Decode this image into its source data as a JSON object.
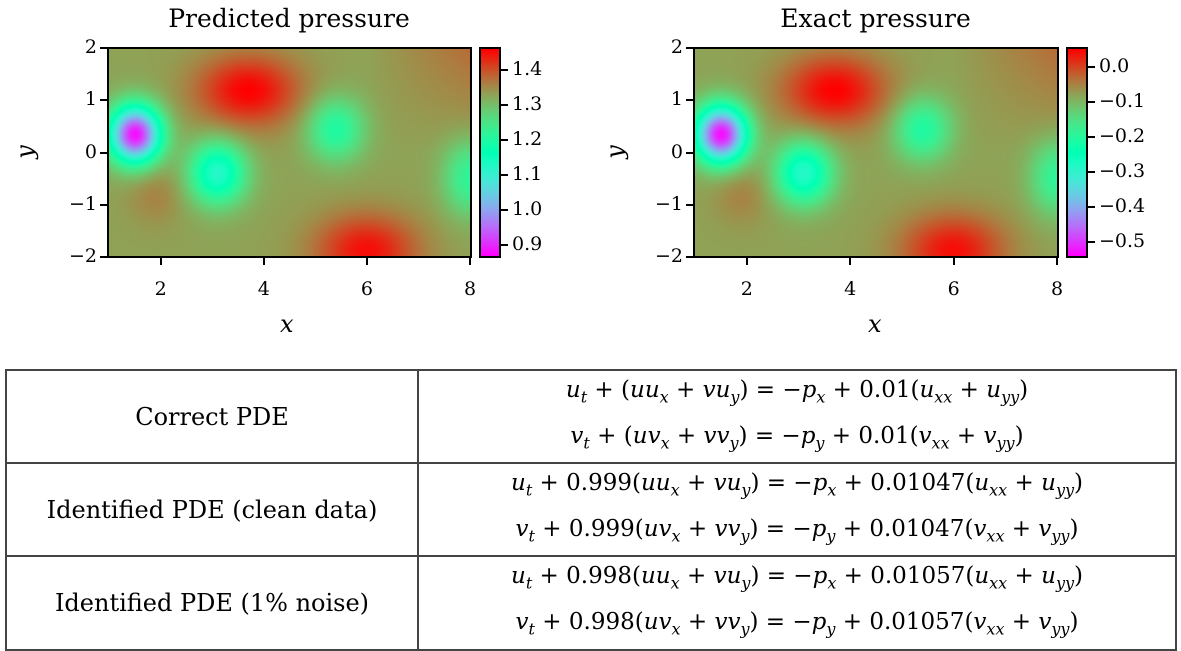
{
  "chart_data": [
    {
      "type": "heatmap",
      "title": "Predicted pressure",
      "xlabel": "x",
      "ylabel": "y",
      "xlim": [
        1,
        8
      ],
      "ylim": [
        -2,
        2
      ],
      "xticks": [
        "2",
        "4",
        "6",
        "8"
      ],
      "xtick_values": [
        2,
        4,
        6,
        8
      ],
      "yticks": [
        "2",
        "1",
        "0",
        "−1",
        "−2"
      ],
      "ytick_values": [
        2,
        1,
        0,
        -1,
        -2
      ],
      "colormap": "rainbow",
      "colorbar": {
        "range": [
          0.87,
          1.46
        ],
        "ticks": [
          "1.4",
          "1.3",
          "1.2",
          "1.1",
          "1.0",
          "0.9"
        ],
        "tick_values": [
          1.4,
          1.3,
          1.2,
          1.1,
          1.0,
          0.9
        ]
      },
      "features": [
        {
          "x": 1.5,
          "y": 0.35,
          "value": 0.88,
          "kind": "minimum"
        },
        {
          "x": 3.1,
          "y": -0.4,
          "value": 1.12,
          "kind": "local-minimum"
        },
        {
          "x": 5.4,
          "y": 0.45,
          "value": 1.2,
          "kind": "local-minimum"
        },
        {
          "x": 8.0,
          "y": -0.5,
          "value": 1.22,
          "kind": "local-minimum"
        },
        {
          "x": 3.7,
          "y": 1.2,
          "value": 1.46,
          "kind": "maximum"
        },
        {
          "x": 6.0,
          "y": -1.9,
          "value": 1.45,
          "kind": "maximum"
        },
        {
          "x": 1.9,
          "y": -0.8,
          "value": 1.36,
          "kind": "local-maximum"
        }
      ]
    },
    {
      "type": "heatmap",
      "title": "Exact pressure",
      "xlabel": "x",
      "ylabel": "y",
      "xlim": [
        1,
        8
      ],
      "ylim": [
        -2,
        2
      ],
      "xticks": [
        "2",
        "4",
        "6",
        "8"
      ],
      "xtick_values": [
        2,
        4,
        6,
        8
      ],
      "yticks": [
        "2",
        "1",
        "0",
        "−1",
        "−2"
      ],
      "ytick_values": [
        2,
        1,
        0,
        -1,
        -2
      ],
      "colormap": "rainbow",
      "colorbar": {
        "range": [
          -0.54,
          0.05
        ],
        "ticks": [
          "0.0",
          "−0.1",
          "−0.2",
          "−0.3",
          "−0.4",
          "−0.5"
        ],
        "tick_values": [
          0.0,
          -0.1,
          -0.2,
          -0.3,
          -0.4,
          -0.5
        ]
      },
      "features": [
        {
          "x": 1.5,
          "y": 0.35,
          "value": -0.53,
          "kind": "minimum"
        },
        {
          "x": 3.1,
          "y": -0.4,
          "value": -0.29,
          "kind": "local-minimum"
        },
        {
          "x": 5.4,
          "y": 0.45,
          "value": -0.21,
          "kind": "local-minimum"
        },
        {
          "x": 8.0,
          "y": -0.5,
          "value": -0.19,
          "kind": "local-minimum"
        },
        {
          "x": 3.7,
          "y": 1.2,
          "value": 0.05,
          "kind": "maximum"
        },
        {
          "x": 6.0,
          "y": -1.9,
          "value": 0.04,
          "kind": "maximum"
        },
        {
          "x": 1.9,
          "y": -0.8,
          "value": -0.05,
          "kind": "local-maximum"
        }
      ]
    }
  ],
  "table": {
    "rows": [
      {
        "label": "Correct PDE",
        "equations": [
          "u_t + (uu_x + vu_y) = −p_x + 0.01(u_xx + u_yy)",
          "v_t + (uv_x + vv_y) = −p_y + 0.01(v_xx + v_yy)"
        ]
      },
      {
        "label": "Identified PDE (clean data)",
        "equations": [
          "u_t + 0.999(uu_x + vu_y) = −p_x + 0.01047(u_xx + u_yy)",
          "v_t + 0.999(uv_x + vv_y) = −p_y + 0.01047(v_xx + v_yy)"
        ]
      },
      {
        "label": "Identified PDE (1% noise)",
        "equations": [
          "u_t + 0.998(uu_x + vu_y) = −p_x + 0.01057(u_xx + u_yy)",
          "v_t + 0.998(uv_x + vv_y) = −p_y + 0.01057(v_xx + v_yy)"
        ]
      }
    ]
  }
}
